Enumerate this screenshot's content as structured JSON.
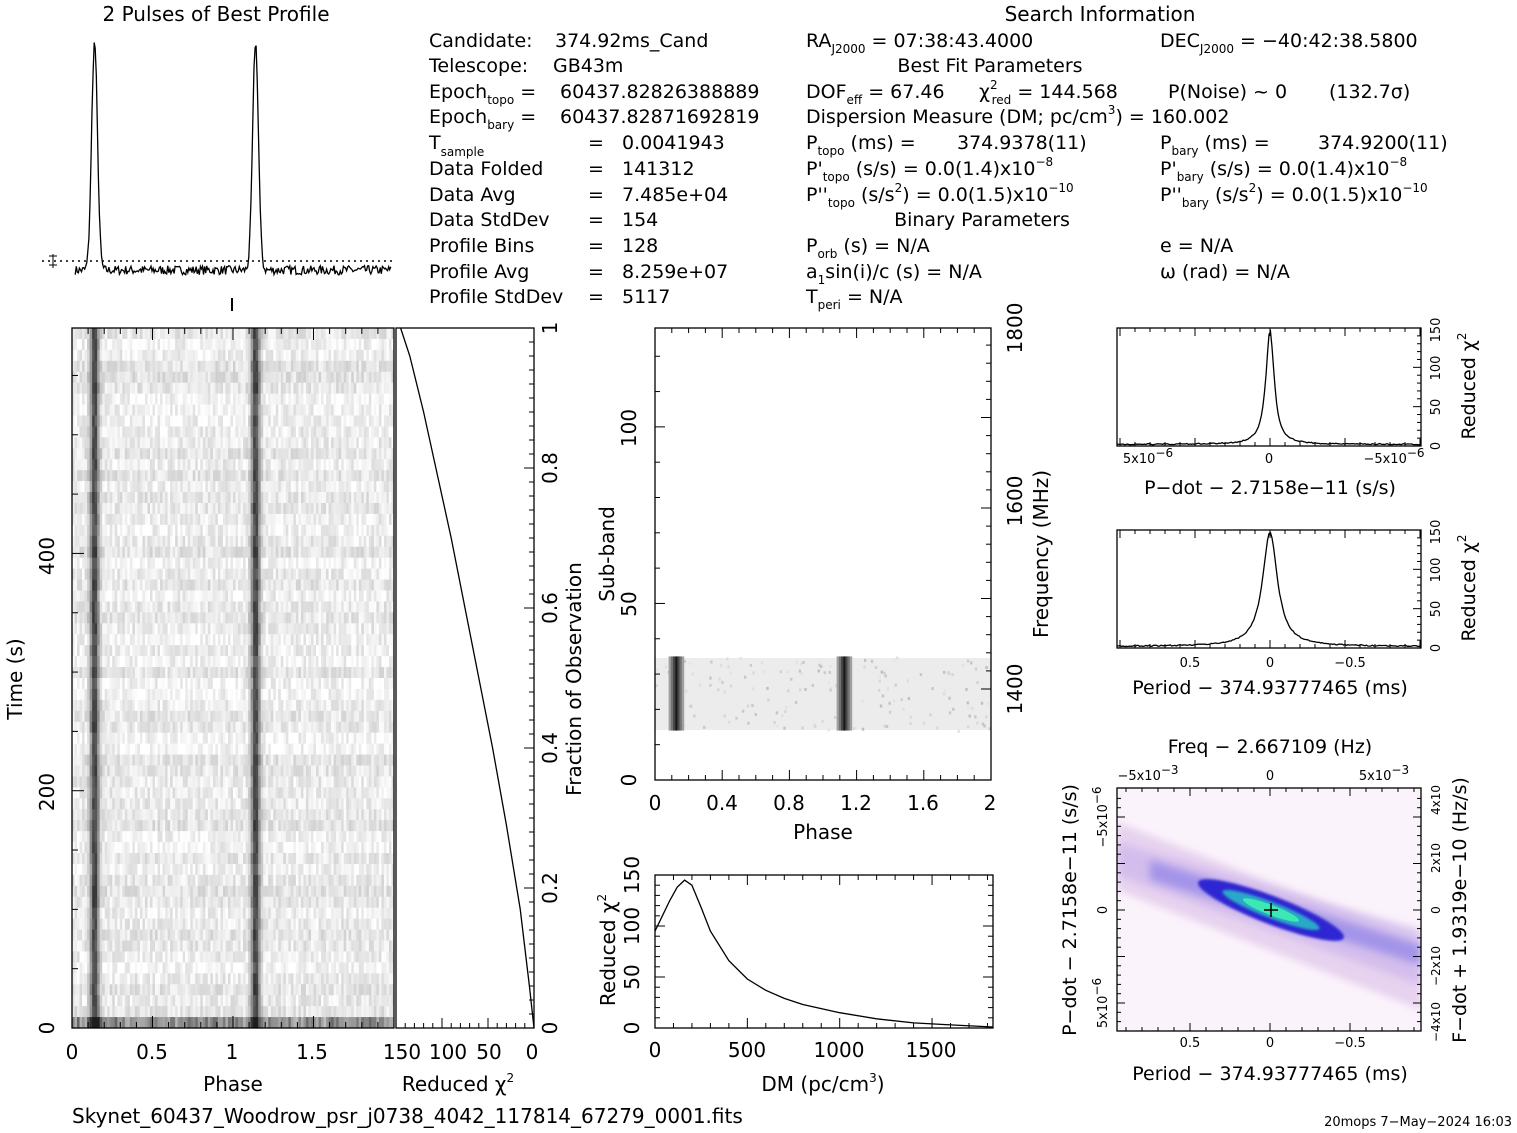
{
  "header": {
    "profile_title": "2 Pulses of Best Profile",
    "search_title": "Search Information",
    "best_fit_title": "Best Fit Parameters",
    "binary_title": "Binary Parameters"
  },
  "candidate_info": {
    "candidate_label": "Candidate:",
    "candidate": "374.92ms_Cand",
    "telescope_label": "Telescope:",
    "telescope": "GB43m",
    "epoch_topo": "60437.82826388889",
    "epoch_bary": "60437.82871692819",
    "t_sample": "0.0041943",
    "data_folded_label": "Data Folded",
    "data_folded": "141312",
    "data_avg_label": "Data Avg",
    "data_avg": "7.485e+04",
    "data_stddev_label": "Data StdDev",
    "data_stddev": "154",
    "profile_bins_label": "Profile Bins",
    "profile_bins": "128",
    "profile_avg_label": "Profile Avg",
    "profile_avg": "8.259e+07",
    "profile_stddev_label": "Profile StdDev",
    "profile_stddev": "5117"
  },
  "search_info": {
    "ra": "07:38:43.4000",
    "dec": "−40:42:38.5800",
    "dof_eff": "67.46",
    "chi2_red": "144.568",
    "p_noise": "P(Noise) ~ 0",
    "sigma": "(132.7σ)",
    "dm_label": "Dispersion Measure (DM; pc/cm",
    "dm_value": "= 160.002",
    "p_topo_label": "(ms) =",
    "p_topo": "374.9378(11)",
    "p_bary_label": "(ms) =",
    "p_bary": "374.9200(11)",
    "pdot_topo_label": "(s/s) =",
    "pdot_topo": "0.0(1.4)x10",
    "pdot_topo_exp": "−8",
    "pdot_bary_label": "(s/s) =",
    "pdot_bary": "0.0(1.4)x10",
    "pdot_bary_exp": "−8",
    "pddot_topo_label": "(s/s",
    "pddot_topo": "= 0.0(1.5)x10",
    "pddot_topo_exp": "−10",
    "pddot_bary_label": "(s/s",
    "pddot_bary": "= 0.0(1.5)x10",
    "pddot_bary_exp": "−10",
    "p_orb_label": "(s) = N/A",
    "a1_label": "sin(i)/c (s) = N/A",
    "t_peri_label": "= N/A",
    "e_label": "e = N/A",
    "omega_label": "ω (rad) = N/A"
  },
  "footer": {
    "filename": "Skynet_60437_Woodrow_psr_j0738_4042_117814_67279_0001.fits",
    "stamp": "20mops   7−May−2024 16:03"
  },
  "chart_data": [
    {
      "id": "profile",
      "type": "line",
      "title": "2 Pulses of Best Profile",
      "x_range": [
        0,
        2
      ],
      "peaks": [
        0.14,
        1.14
      ],
      "peak_width": 0.018,
      "baseline_level": 0.04
    },
    {
      "id": "time_phase",
      "type": "heatmap",
      "xlabel": "Phase",
      "ylabel": "Time (s)",
      "xlim": [
        0,
        2
      ],
      "ylim": [
        0,
        590
      ],
      "xticks": [
        "0",
        "0.5",
        "1",
        "1.5"
      ],
      "yticks": [
        "0",
        "200",
        "400"
      ],
      "pulse_phases": [
        0.14,
        1.14
      ]
    },
    {
      "id": "chi2_vs_time",
      "type": "line",
      "xlabel": "Reduced χ",
      "ylabel": "Fraction of Observation",
      "xlim": [
        150,
        0
      ],
      "ylim": [
        0,
        1
      ],
      "xticks": [
        "150",
        "100",
        "50",
        "0"
      ],
      "yticks": [
        "0",
        "0.2",
        "0.4",
        "0.6",
        "0.8",
        "1"
      ],
      "x": [
        0,
        5,
        15,
        30,
        45,
        60,
        75,
        90,
        105,
        120,
        135,
        145
      ],
      "y": [
        0,
        0.06,
        0.17,
        0.29,
        0.4,
        0.5,
        0.6,
        0.7,
        0.79,
        0.88,
        0.96,
        1.0
      ]
    },
    {
      "id": "subband_phase",
      "type": "heatmap",
      "xlabel": "Phase",
      "ylabel": "Sub-band",
      "y2label": "Frequency (MHz)",
      "xlim": [
        0,
        2
      ],
      "ylim": [
        0,
        128
      ],
      "xticks": [
        "0",
        "0.4",
        "0.8",
        "1.2",
        "1.6",
        "2"
      ],
      "yticks": [
        "0",
        "50",
        "100"
      ],
      "y2ticks": [
        "1400",
        "1600",
        "1800"
      ],
      "occupied_subbands": [
        14,
        35
      ],
      "pulse_phases": [
        0.12,
        1.12
      ]
    },
    {
      "id": "dm_curve",
      "type": "line",
      "xlabel": "DM (pc/cm",
      "ylabel": "Reduced χ",
      "xlim": [
        0,
        1830
      ],
      "ylim": [
        0,
        150
      ],
      "xticks": [
        "0",
        "500",
        "1000",
        "1500"
      ],
      "yticks": [
        "0",
        "50",
        "100",
        "150"
      ],
      "x": [
        0,
        40,
        80,
        120,
        160,
        200,
        250,
        300,
        400,
        500,
        600,
        700,
        800,
        1000,
        1200,
        1400,
        1600,
        1830
      ],
      "y": [
        95,
        110,
        125,
        138,
        145,
        140,
        118,
        95,
        66,
        48,
        37,
        29,
        23,
        15,
        9,
        5,
        3,
        1
      ]
    },
    {
      "id": "pdot_chi2",
      "type": "line",
      "xlabel": "P−dot − 2.7158e−11 (s/s)",
      "ylabel": "Reduced χ",
      "xticks": [
        "5x10",
        "0",
        "−5x10"
      ],
      "yticks": [
        "0",
        "50",
        "100",
        "150"
      ],
      "ylim": [
        0,
        150
      ],
      "peak": 145
    },
    {
      "id": "period_chi2",
      "type": "line",
      "xlabel": "Period − 374.93777465 (ms)",
      "ylabel": "Reduced χ",
      "xticks": [
        "0.5",
        "0",
        "−0.5"
      ],
      "yticks": [
        "0",
        "50",
        "100",
        "150"
      ],
      "ylim": [
        0,
        150
      ],
      "peak": 145
    },
    {
      "id": "p_pdot",
      "type": "heatmap",
      "title": "Freq − 2.667109 (Hz)",
      "xlabel": "Period − 374.93777465 (ms)",
      "ylabel": "P−dot − 2.7158e−11 (s/s)",
      "y2label": "F−dot + 1.9319e−10 (Hz/s)",
      "xticks": [
        "0.5",
        "0",
        "−0.5"
      ],
      "x2ticks": [
        "−5x10",
        "0",
        "5x10"
      ],
      "yticks": [
        "5x10",
        "0",
        "−5x10"
      ],
      "y2ticks": [
        "−4x10",
        "−2x10",
        "0",
        "2x10",
        "4x10"
      ]
    }
  ],
  "colors": {
    "ink": "#000000",
    "heat_low": "#ffffff",
    "ridge": "#3a2bd8",
    "core": "#33e0b0"
  }
}
